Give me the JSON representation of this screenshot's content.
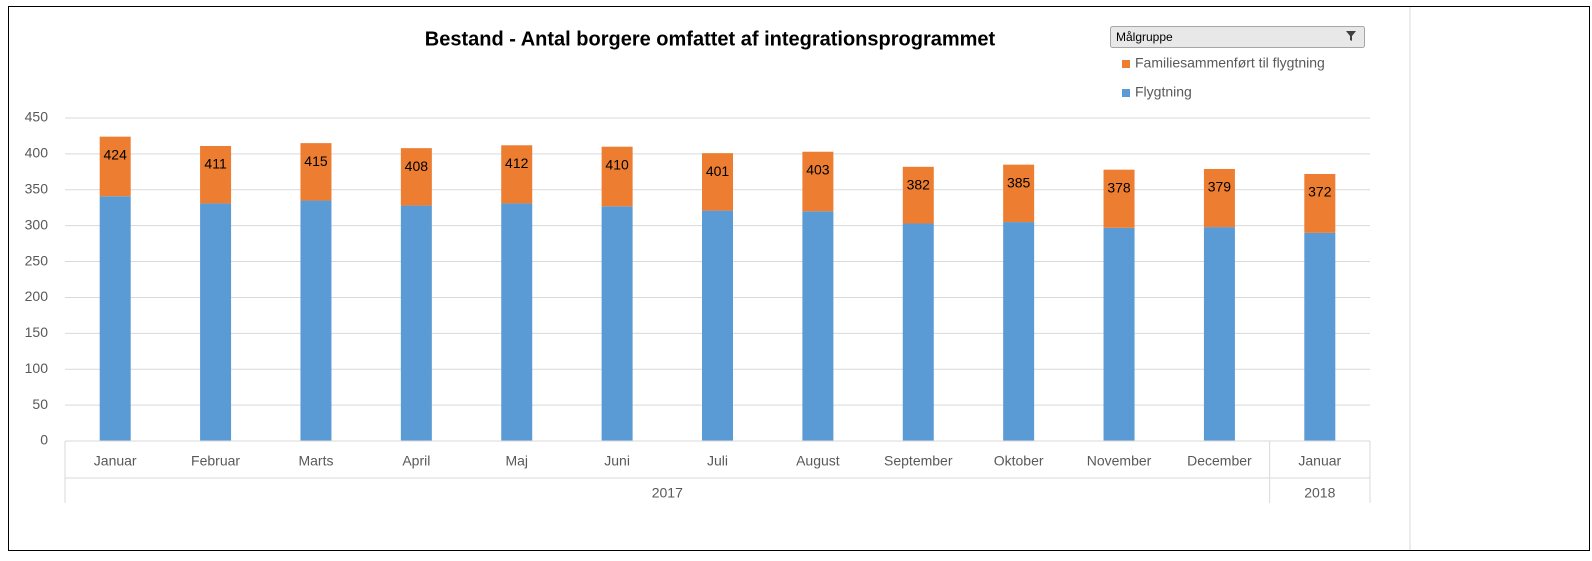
{
  "chart_data": {
    "type": "stacked_bar",
    "title": "Bestand - Antal borgere omfattet af integrationsprogrammet",
    "filter_label": "Målgruppe",
    "categories": [
      "Januar",
      "Februar",
      "Marts",
      "April",
      "Maj",
      "Juni",
      "Juli",
      "August",
      "September",
      "Oktober",
      "November",
      "December",
      "Januar"
    ],
    "groups": [
      {
        "label": "2017",
        "span": 12
      },
      {
        "label": "2018",
        "span": 1
      }
    ],
    "series": [
      {
        "name": "Flygtning",
        "color": "#5b9bd5",
        "values": [
          341,
          331,
          335,
          328,
          331,
          327,
          321,
          320,
          303,
          305,
          297,
          298,
          290
        ]
      },
      {
        "name": "Familiesammenført til flygtning",
        "color": "#ed7d31",
        "values": [
          83,
          80,
          80,
          80,
          81,
          83,
          80,
          83,
          79,
          80,
          81,
          81,
          82
        ]
      }
    ],
    "totals": [
      424,
      411,
      415,
      408,
      412,
      410,
      401,
      403,
      382,
      385,
      378,
      379,
      372
    ],
    "ylim": [
      0,
      450
    ],
    "yticks": [
      0,
      50,
      100,
      150,
      200,
      250,
      300,
      350,
      400,
      450
    ],
    "grid": true
  }
}
